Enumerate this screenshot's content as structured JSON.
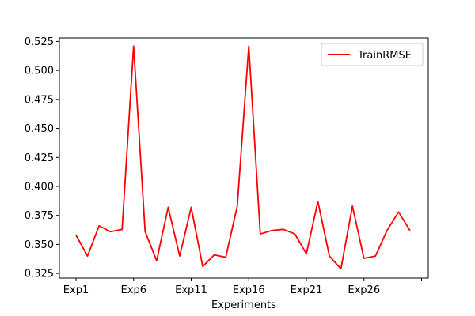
{
  "chart_data": {
    "type": "line",
    "title": "",
    "xlabel": "Experiments",
    "ylabel": "",
    "x": [
      "Exp1",
      "Exp2",
      "Exp3",
      "Exp4",
      "Exp5",
      "Exp6",
      "Exp7",
      "Exp8",
      "Exp9",
      "Exp10",
      "Exp11",
      "Exp12",
      "Exp13",
      "Exp14",
      "Exp15",
      "Exp16",
      "Exp17",
      "Exp18",
      "Exp19",
      "Exp20",
      "Exp21",
      "Exp22",
      "Exp23",
      "Exp24",
      "Exp25",
      "Exp26",
      "Exp27",
      "Exp28",
      "Exp29",
      "Exp30"
    ],
    "x_tick_labels": [
      "Exp1",
      "Exp6",
      "Exp11",
      "Exp16",
      "Exp21",
      "Exp26",
      ""
    ],
    "series": [
      {
        "name": "TrainRMSE",
        "color": "#ff0000",
        "values": [
          0.358,
          0.34,
          0.366,
          0.361,
          0.363,
          0.521,
          0.361,
          0.336,
          0.382,
          0.34,
          0.382,
          0.331,
          0.341,
          0.339,
          0.383,
          0.521,
          0.359,
          0.362,
          0.363,
          0.359,
          0.342,
          0.387,
          0.34,
          0.329,
          0.383,
          0.338,
          0.34,
          0.362,
          0.378,
          0.362
        ]
      }
    ],
    "ylim": [
      0.321,
      0.528
    ],
    "yticks": [
      0.325,
      0.35,
      0.375,
      0.4,
      0.425,
      0.45,
      0.475,
      0.5,
      0.525
    ],
    "ytick_labels": [
      "0.325",
      "0.350",
      "0.375",
      "0.400",
      "0.425",
      "0.450",
      "0.475",
      "0.500",
      "0.525"
    ],
    "grid": false,
    "legend_position": "top-right"
  }
}
